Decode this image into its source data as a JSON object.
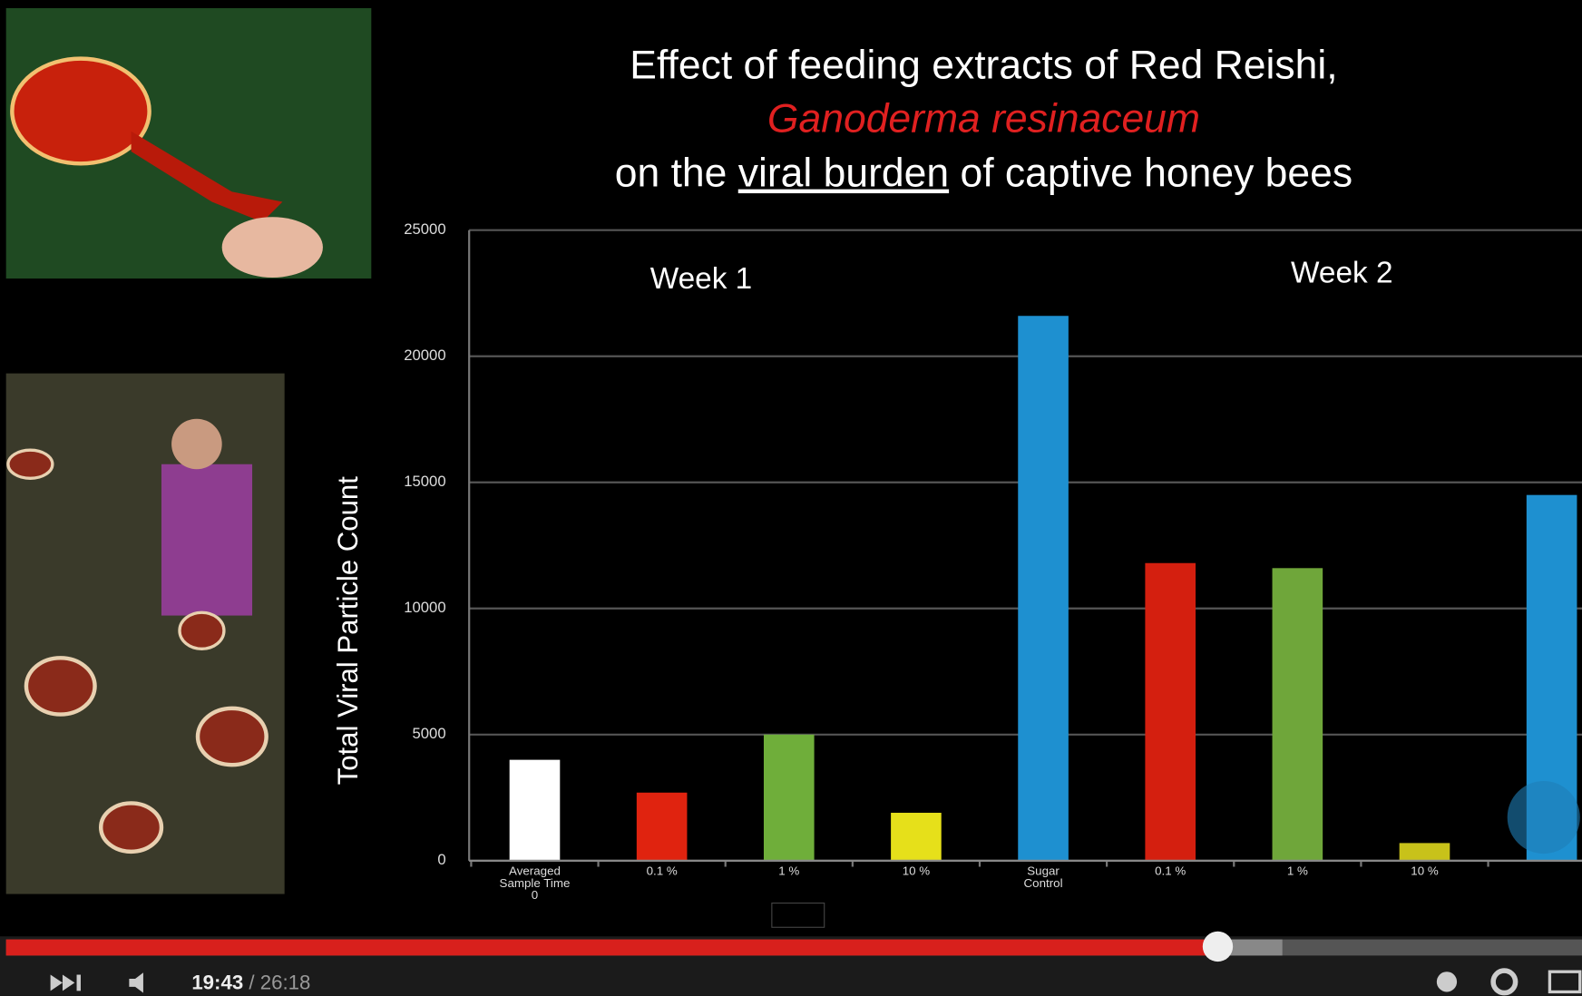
{
  "chart_data": {
    "type": "bar",
    "title": "Effect of feeding extracts of Red Reishi,",
    "subtitle": "Ganoderma resinaceum",
    "caption_parts": [
      "on the",
      "viral burden",
      "of captive honey bees"
    ],
    "y_label": "Total Viral Particle Count",
    "annotations": [
      "Week 1",
      "Week 2"
    ],
    "categories": [
      "Averaged Sample Time 0",
      "0.1 %",
      "1 %",
      "10 %",
      "Sugar Control",
      "0.1 %",
      "1 %",
      "10 %",
      null
    ],
    "values": [
      4000,
      2700,
      5000,
      1900,
      21600,
      11800,
      11600,
      700,
      14500
    ],
    "colors": [
      "#ffffff",
      "#e0230f",
      "#6fae3a",
      "#e6e01a",
      "#1e90d0",
      "#d41f0f",
      "#6fa63a",
      "#c8c21a",
      "#1e90d0"
    ],
    "ylim": [
      0,
      25000
    ],
    "yticks": [
      0,
      5000,
      10000,
      15000,
      20000,
      25000
    ],
    "grid": true
  },
  "player": {
    "current_time": "19:43",
    "time_separator": "/",
    "duration": "26:18"
  }
}
